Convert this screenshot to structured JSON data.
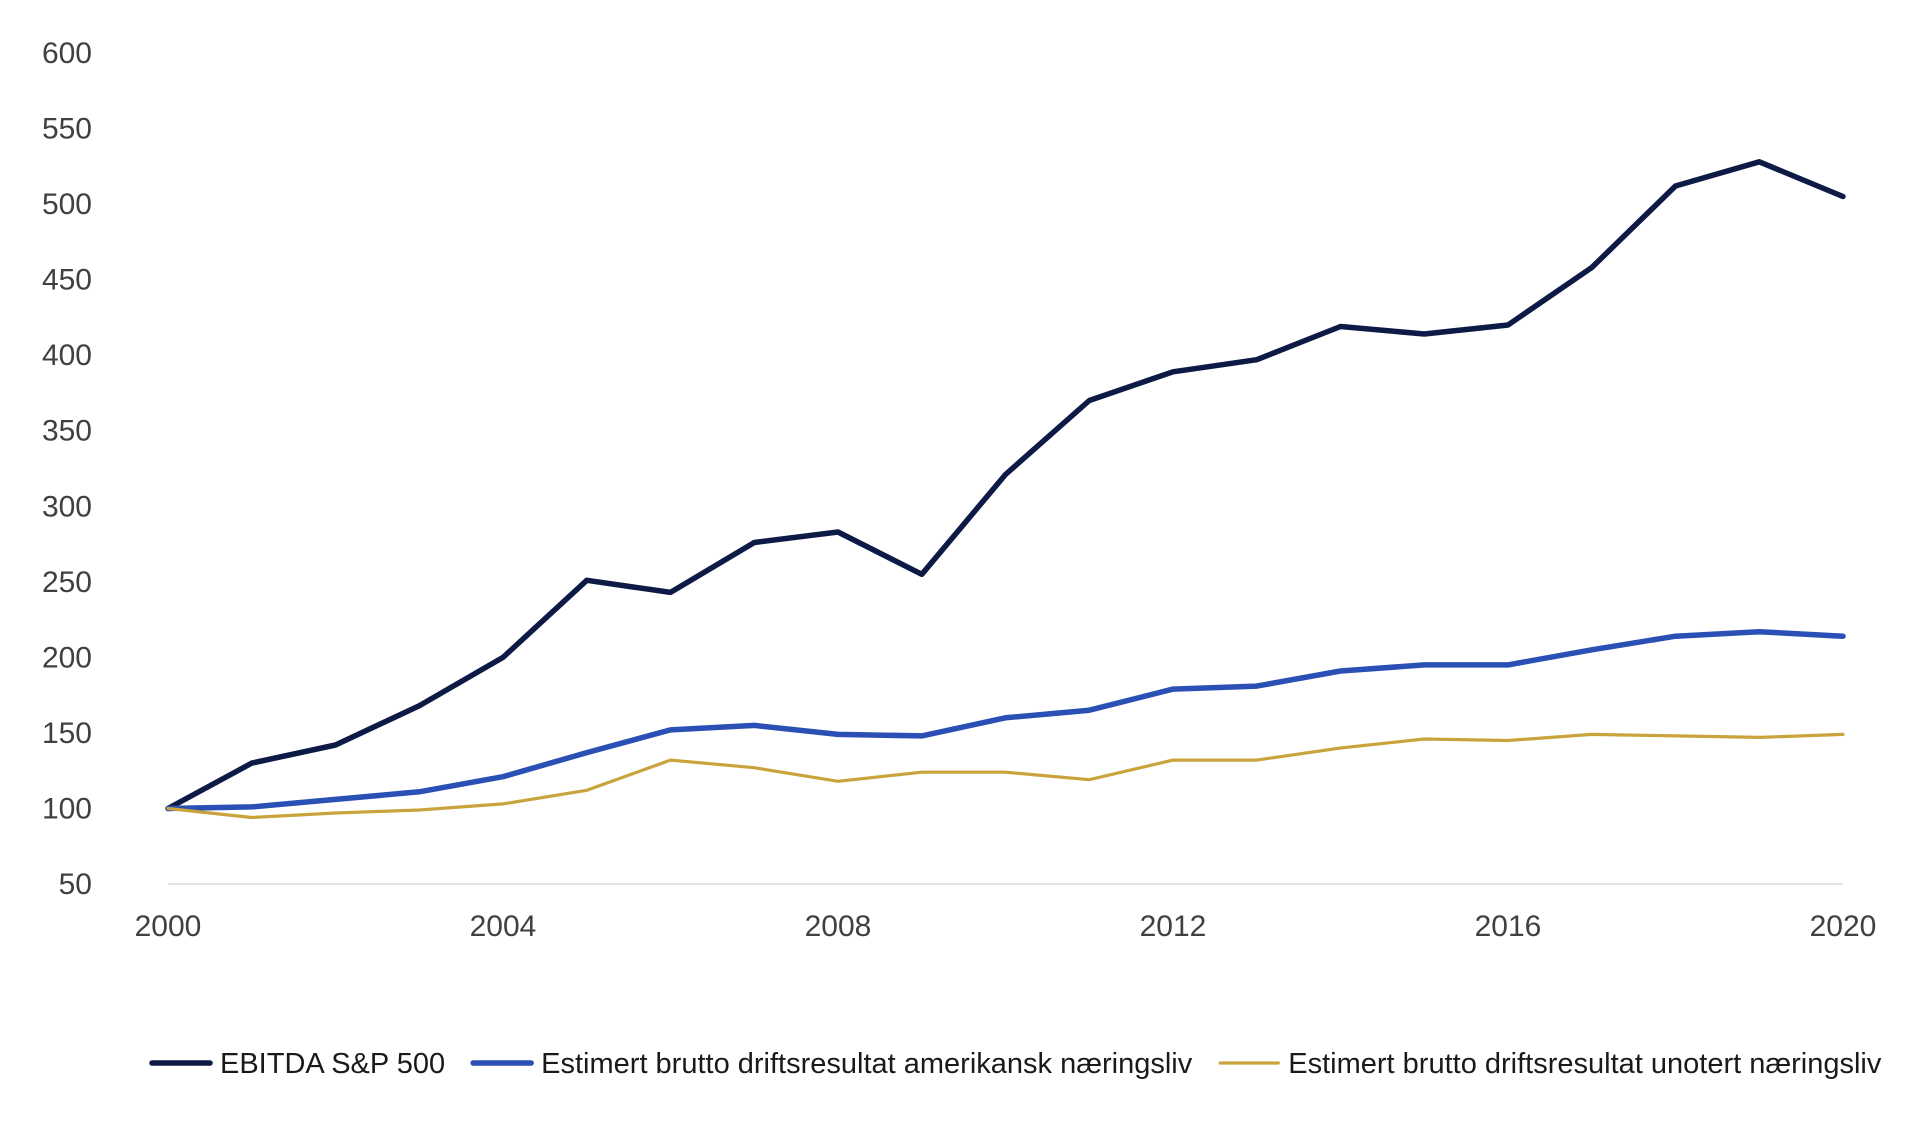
{
  "chart_data": {
    "type": "line",
    "title": "",
    "xlabel": "",
    "ylabel": "",
    "x": [
      2000,
      2001,
      2002,
      2003,
      2004,
      2005,
      2006,
      2007,
      2008,
      2009,
      2010,
      2011,
      2012,
      2013,
      2014,
      2015,
      2016,
      2017,
      2018,
      2019,
      2020
    ],
    "xlim": [
      2000,
      2020
    ],
    "ylim": [
      50,
      600
    ],
    "x_ticks": [
      2000,
      2004,
      2008,
      2012,
      2016,
      2020
    ],
    "x_tick_labels": [
      "2000",
      "2004",
      "2008",
      "2012",
      "2016",
      "2020"
    ],
    "y_ticks": [
      50,
      100,
      150,
      200,
      250,
      300,
      350,
      400,
      450,
      500,
      550,
      600
    ],
    "y_tick_labels": [
      "50",
      "100",
      "150",
      "200",
      "250",
      "300",
      "350",
      "400",
      "450",
      "500",
      "550",
      "600"
    ],
    "grid": false,
    "legend_position": "bottom",
    "series": [
      {
        "name": "EBITDA S&P 500",
        "color": "#0d1a45",
        "values": [
          100,
          130,
          142,
          168,
          200,
          251,
          243,
          276,
          283,
          255,
          321,
          370,
          389,
          397,
          419,
          414,
          420,
          458,
          512,
          528,
          505
        ]
      },
      {
        "name": "Estimert brutto driftsresultat amerikansk næringsliv",
        "color": "#2a4fb5",
        "values": [
          100,
          101,
          106,
          111,
          121,
          137,
          152,
          155,
          149,
          148,
          160,
          165,
          179,
          181,
          191,
          195,
          195,
          205,
          214,
          217,
          214
        ]
      },
      {
        "name": "Estimert brutto driftsresultat unotert næringsliv",
        "color": "#c9a43c",
        "values": [
          100,
          94,
          97,
          99,
          103,
          112,
          132,
          127,
          118,
          124,
          124,
          119,
          132,
          132,
          140,
          146,
          145,
          149,
          148,
          147,
          149
        ]
      }
    ]
  }
}
